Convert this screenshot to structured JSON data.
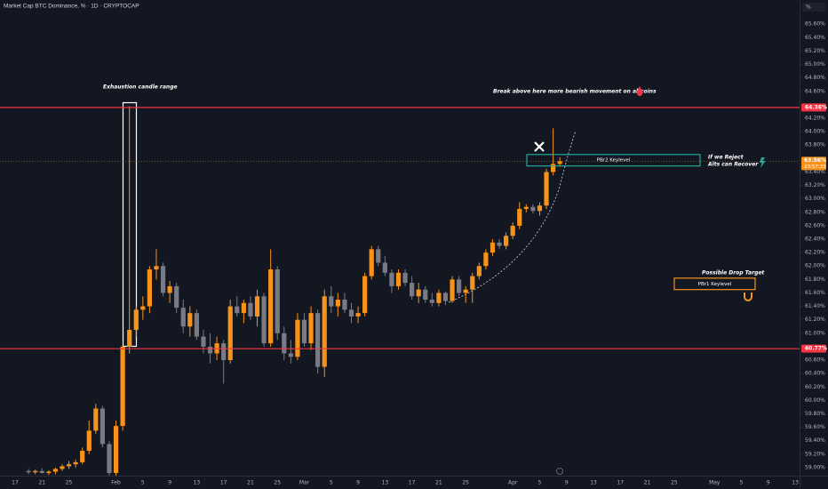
{
  "chart_data": {
    "type": "candlestick",
    "title": "Market Cap BTC Dominance, % · 1D · CRYPTOCAP",
    "y_axis_label": "%",
    "up_color": "#f7931a",
    "down_color": "#787b86",
    "categories": [
      "17",
      null,
      null,
      null,
      "21",
      null,
      null,
      null,
      "25",
      null,
      null,
      null,
      null,
      null,
      null,
      "Feb",
      null,
      null,
      null,
      "5",
      null,
      null,
      null,
      "9",
      null,
      null,
      null,
      "13",
      null,
      null,
      null,
      "17",
      null,
      null,
      null,
      "21",
      null,
      null,
      null,
      "25",
      null,
      null,
      null,
      "Mar",
      null,
      null,
      null,
      "5",
      null,
      null,
      null,
      "9",
      null,
      null,
      null,
      "13",
      null,
      null,
      null,
      "17",
      null,
      null,
      null,
      "21",
      null,
      null,
      null,
      "25",
      null,
      null,
      null,
      null,
      null,
      null,
      "Apr",
      null,
      null,
      null,
      "5",
      null,
      null,
      null,
      "9",
      null,
      null,
      null,
      "13",
      null,
      null,
      null,
      "17",
      null,
      null,
      null,
      "21",
      null,
      null,
      null,
      "25",
      null,
      null,
      null,
      null,
      null,
      "May",
      null,
      null,
      null,
      "5",
      null,
      null,
      null,
      "9",
      null,
      null,
      null,
      "13"
    ],
    "open": [
      null,
      null,
      58.95,
      58.93,
      58.95,
      58.92,
      58.94,
      58.98,
      59.02,
      59.05,
      59.08,
      59.25,
      59.55,
      59.88,
      59.35,
      58.92,
      59.62,
      60.8,
      61.05,
      61.35,
      61.4,
      61.95,
      62.0,
      61.6,
      61.7,
      61.38,
      61.1,
      61.3,
      60.95,
      60.8,
      60.7,
      60.85,
      60.6,
      61.4,
      61.3,
      61.45,
      61.25,
      61.55,
      60.85,
      61.95,
      61.0,
      60.7,
      60.65,
      61.2,
      60.85,
      61.3,
      60.5,
      61.55,
      61.4,
      61.5,
      61.35,
      61.25,
      61.3,
      61.85,
      62.25,
      62.05,
      61.9,
      61.7,
      61.9,
      61.75,
      61.55,
      61.65,
      61.5,
      61.45,
      61.6,
      61.48,
      61.8,
      61.6,
      61.65,
      61.85,
      62.0,
      62.2,
      62.35,
      62.3,
      62.45,
      62.6,
      62.85,
      62.88,
      62.82,
      62.9,
      63.4,
      63.52,
      null,
      null,
      null,
      null,
      null,
      null,
      null,
      null,
      null,
      null,
      null,
      null,
      null,
      null,
      null,
      null,
      null,
      null,
      null,
      null,
      null,
      null,
      null,
      null,
      null,
      null,
      null,
      null,
      null,
      null,
      null,
      null,
      null,
      null,
      null
    ],
    "high": [
      null,
      null,
      58.98,
      58.97,
      58.99,
      58.96,
      59.0,
      59.05,
      59.1,
      59.12,
      59.3,
      59.7,
      59.95,
      59.92,
      59.4,
      59.7,
      60.82,
      64.38,
      61.4,
      61.55,
      62.0,
      62.25,
      62.05,
      61.78,
      61.75,
      61.5,
      61.4,
      61.35,
      61.05,
      61.0,
      60.95,
      60.9,
      61.5,
      61.55,
      61.5,
      61.55,
      61.65,
      61.6,
      62.25,
      62.0,
      61.1,
      60.9,
      61.3,
      61.3,
      61.4,
      61.35,
      61.65,
      61.7,
      61.6,
      61.6,
      61.45,
      61.4,
      61.9,
      62.3,
      62.3,
      62.15,
      61.95,
      61.95,
      61.95,
      61.85,
      61.75,
      61.7,
      61.6,
      61.65,
      61.62,
      61.85,
      61.85,
      61.7,
      61.9,
      62.05,
      62.25,
      62.4,
      62.4,
      62.5,
      62.65,
      62.95,
      62.92,
      62.92,
      62.95,
      63.45,
      64.05,
      63.62,
      null,
      null,
      null,
      null,
      null,
      null,
      null,
      null,
      null,
      null,
      null,
      null,
      null,
      null,
      null,
      null,
      null,
      null,
      null,
      null,
      null,
      null,
      null,
      null,
      null,
      null,
      null,
      null,
      null,
      null,
      null,
      null,
      null,
      null,
      null
    ],
    "low": [
      null,
      null,
      58.9,
      58.9,
      58.91,
      58.89,
      58.9,
      58.95,
      58.98,
      59.0,
      59.05,
      59.2,
      59.5,
      59.3,
      58.88,
      58.88,
      59.55,
      60.7,
      60.95,
      61.2,
      61.3,
      61.8,
      61.55,
      61.45,
      61.3,
      61.0,
      60.95,
      60.9,
      60.7,
      60.55,
      60.6,
      60.25,
      60.55,
      61.25,
      61.15,
      61.2,
      61.1,
      60.8,
      60.8,
      60.9,
      60.6,
      60.55,
      60.6,
      60.8,
      60.75,
      60.4,
      60.35,
      61.3,
      61.25,
      61.3,
      61.15,
      61.15,
      61.25,
      61.8,
      62.0,
      61.85,
      61.6,
      61.65,
      61.7,
      61.5,
      61.45,
      61.45,
      61.4,
      61.4,
      61.42,
      61.45,
      61.55,
      61.45,
      61.45,
      61.8,
      61.95,
      62.15,
      62.25,
      62.25,
      62.4,
      62.55,
      62.8,
      62.78,
      62.75,
      62.85,
      63.35,
      63.48,
      null,
      null,
      null,
      null,
      null,
      null,
      null,
      null,
      null,
      null,
      null,
      null,
      null,
      null,
      null,
      null,
      null,
      null,
      null,
      null,
      null,
      null,
      null,
      null,
      null,
      null,
      null,
      null,
      null,
      null,
      null,
      null,
      null,
      null,
      null
    ],
    "close": [
      null,
      null,
      58.93,
      58.95,
      58.92,
      58.94,
      58.98,
      59.02,
      59.05,
      59.08,
      59.25,
      59.55,
      59.88,
      59.35,
      58.92,
      59.62,
      60.8,
      61.05,
      61.35,
      61.4,
      61.95,
      62.0,
      61.6,
      61.7,
      61.38,
      61.1,
      61.3,
      60.95,
      60.8,
      60.7,
      60.85,
      60.6,
      61.4,
      61.3,
      61.45,
      61.25,
      61.55,
      60.85,
      61.95,
      61.0,
      60.7,
      60.65,
      61.2,
      60.85,
      61.3,
      60.5,
      61.55,
      61.4,
      61.5,
      61.35,
      61.25,
      61.3,
      61.85,
      62.25,
      62.05,
      61.9,
      61.7,
      61.9,
      61.75,
      61.55,
      61.65,
      61.5,
      61.45,
      61.6,
      61.48,
      61.8,
      61.6,
      61.65,
      61.85,
      62.0,
      62.2,
      62.35,
      62.3,
      62.45,
      62.6,
      62.85,
      62.88,
      62.82,
      62.9,
      63.4,
      63.52,
      63.56,
      null,
      null,
      null,
      null,
      null,
      null,
      null,
      null,
      null,
      null,
      null,
      null,
      null,
      null,
      null,
      null,
      null,
      null,
      null,
      null,
      null,
      null,
      null,
      null,
      null,
      null,
      null,
      null,
      null,
      null,
      null,
      null,
      null,
      null,
      null
    ],
    "ylim": [
      58.88,
      65.96
    ],
    "yticks": [
      {
        "value": 65.6,
        "label": "65.60%"
      },
      {
        "value": 65.4,
        "label": "65.40%"
      },
      {
        "value": 65.2,
        "label": "65.20%"
      },
      {
        "value": 65.0,
        "label": "65.00%"
      },
      {
        "value": 64.8,
        "label": "64.80%"
      },
      {
        "value": 64.6,
        "label": "64.60%"
      },
      {
        "value": 64.2,
        "label": "64.20%"
      },
      {
        "value": 64.0,
        "label": "64.00%"
      },
      {
        "value": 63.8,
        "label": "63.80%"
      },
      {
        "value": 63.4,
        "label": "63.40%"
      },
      {
        "value": 63.2,
        "label": "63.20%"
      },
      {
        "value": 63.0,
        "label": "63.00%"
      },
      {
        "value": 62.8,
        "label": "62.80%"
      },
      {
        "value": 62.6,
        "label": "62.60%"
      },
      {
        "value": 62.4,
        "label": "62.40%"
      },
      {
        "value": 62.2,
        "label": "62.20%"
      },
      {
        "value": 62.0,
        "label": "62.00%"
      },
      {
        "value": 61.8,
        "label": "61.80%"
      },
      {
        "value": 61.6,
        "label": "61.60%"
      },
      {
        "value": 61.4,
        "label": "61.40%"
      },
      {
        "value": 61.2,
        "label": "61.20%"
      },
      {
        "value": 61.0,
        "label": "61.00%"
      },
      {
        "value": 60.6,
        "label": "60.60%"
      },
      {
        "value": 60.4,
        "label": "60.40%"
      },
      {
        "value": 60.2,
        "label": "60.20%"
      },
      {
        "value": 60.0,
        "label": "60.00%"
      },
      {
        "value": 59.8,
        "label": "59.80%"
      },
      {
        "value": 59.6,
        "label": "59.60%"
      },
      {
        "value": 59.4,
        "label": "59.40%"
      },
      {
        "value": 59.2,
        "label": "59.20%"
      },
      {
        "value": 59.0,
        "label": "59.00%"
      }
    ],
    "grid": false,
    "levels": [
      {
        "value": 64.36,
        "label": "64.36%",
        "color": "#f23645"
      },
      {
        "value": 60.77,
        "label": "60.77%",
        "color": "#f23645"
      }
    ],
    "last_price": {
      "value": 63.56,
      "label": "63.56%",
      "countdown": "23:57:33",
      "color": "#f7931a"
    },
    "zones": [
      {
        "label": "PBr2 Keylevel",
        "top": 63.66,
        "bottom": 63.49,
        "color": "#26a69a"
      },
      {
        "label": "PBr1 Keylevel",
        "top": 61.82,
        "bottom": 61.65,
        "color": "#f7931a"
      }
    ],
    "annotations": [
      "Exhaustion candle range",
      "Break above here more bearish movement on altcoins",
      "If we Reject",
      "Alts can Recover",
      "Possible Drop Target"
    ]
  }
}
